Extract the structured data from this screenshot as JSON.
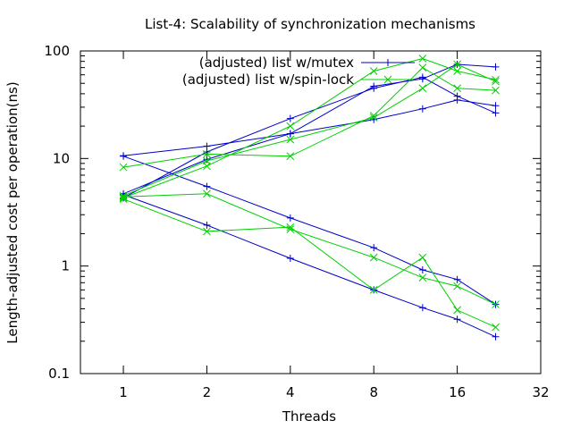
{
  "chart_data": {
    "type": "line",
    "title": "List-4: Scalability of synchronization mechanisms",
    "xlabel": "Threads",
    "ylabel": "Length-adjusted cost per operation(ns)",
    "x_scale": "log2",
    "y_scale": "log10",
    "xlim": [
      0.7,
      32
    ],
    "ylim": [
      0.1,
      100
    ],
    "x_ticks": [
      1,
      2,
      4,
      8,
      16,
      32
    ],
    "x_tick_labels": [
      "1",
      "2",
      "4",
      "8",
      "16",
      "32"
    ],
    "y_ticks": [
      0.1,
      1,
      10,
      100
    ],
    "y_tick_labels": [
      "0.1",
      "1",
      "10",
      "100"
    ],
    "grid": false,
    "legend_position": "top-right",
    "series": [
      {
        "name": "(adjusted) list w/mutex",
        "color": "#0000c8",
        "marker": "plus",
        "lines": [
          {
            "x": [
              1,
              2,
              4,
              8,
              12,
              16,
              22
            ],
            "y": [
              10.5,
              5.5,
              2.8,
              1.48,
              0.92,
              0.75,
              0.44
            ]
          },
          {
            "x": [
              1,
              2,
              4,
              8,
              12,
              16,
              22
            ],
            "y": [
              4.6,
              2.4,
              1.18,
              0.6,
              0.41,
              0.32,
              0.22
            ]
          },
          {
            "x": [
              1,
              2,
              4,
              8,
              12,
              16,
              22
            ],
            "y": [
              4.7,
              9.8,
              17,
              47,
              55,
              75,
              71
            ]
          },
          {
            "x": [
              1,
              2,
              4,
              8,
              12,
              16,
              22
            ],
            "y": [
              4.3,
              11.5,
              23.5,
              45,
              57,
              38,
              26.5
            ]
          },
          {
            "x": [
              1,
              2,
              4,
              8,
              12,
              16,
              22
            ],
            "y": [
              10.6,
              13,
              17,
              23,
              29,
              35,
              31
            ]
          }
        ]
      },
      {
        "name": "(adjusted) list w/spin-lock",
        "color": "#00d000",
        "marker": "cross",
        "lines": [
          {
            "x": [
              1,
              2,
              4,
              8,
              12,
              16,
              22
            ],
            "y": [
              4.4,
              4.7,
              2.2,
              1.2,
              0.78,
              0.65,
              0.44
            ]
          },
          {
            "x": [
              1,
              2,
              4,
              8,
              12,
              16,
              22
            ],
            "y": [
              4.2,
              2.1,
              2.3,
              0.6,
              1.2,
              0.39,
              0.27
            ]
          },
          {
            "x": [
              1,
              2,
              4,
              8,
              12,
              16,
              22
            ],
            "y": [
              4.3,
              8.5,
              20,
              65,
              85,
              65,
              54
            ]
          },
          {
            "x": [
              1,
              2,
              4,
              8,
              12,
              16,
              22
            ],
            "y": [
              4.5,
              9.5,
              15,
              24,
              45,
              75,
              52
            ]
          },
          {
            "x": [
              1,
              2,
              4,
              8,
              12,
              16,
              22
            ],
            "y": [
              8.3,
              11,
              10.5,
              25,
              70,
              45,
              43
            ]
          }
        ]
      }
    ]
  }
}
